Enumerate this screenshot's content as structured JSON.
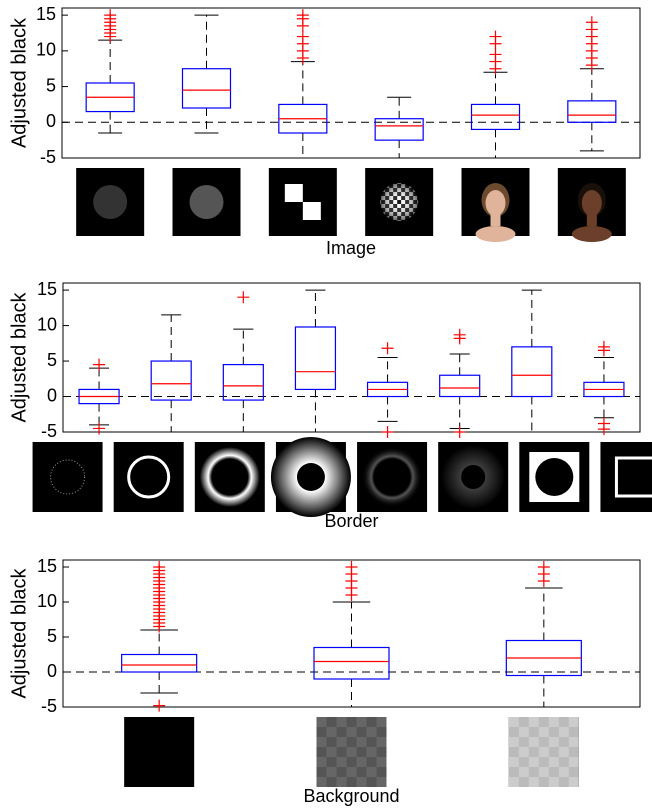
{
  "chart_data": [
    {
      "type": "box",
      "ylabel": "Adjusted black",
      "xlabel": "Image",
      "ylim": [
        -5,
        16
      ],
      "yticks": [
        -5,
        0,
        5,
        10,
        15
      ],
      "reference_line": 0,
      "box_color": "#0000ff",
      "median_color": "#ff0000",
      "flier_color": "#ff0000",
      "boxes": [
        {
          "whislo": -1.5,
          "q1": 1.5,
          "med": 3.5,
          "q3": 5.5,
          "whishi": 11.5,
          "fliers": [
            12,
            12.5,
            13,
            13.5,
            14,
            14.5,
            15
          ]
        },
        {
          "whislo": -1.5,
          "q1": 2,
          "med": 4.5,
          "q3": 7.5,
          "whishi": 15,
          "fliers": []
        },
        {
          "whislo": -5,
          "q1": -1.5,
          "med": 0.5,
          "q3": 2.5,
          "whishi": 8.5,
          "fliers": [
            9,
            10,
            11,
            12,
            13.5,
            14.5,
            15
          ]
        },
        {
          "whislo": -5,
          "q1": -2.5,
          "med": -0.5,
          "q3": 0.5,
          "whishi": 3.5,
          "fliers": []
        },
        {
          "whislo": -5,
          "q1": -1,
          "med": 1,
          "q3": 2.5,
          "whishi": 7,
          "fliers": [
            7.5,
            8.5,
            9.5,
            11,
            12
          ]
        },
        {
          "whislo": -4,
          "q1": 0,
          "med": 1,
          "q3": 3,
          "whishi": 7.5,
          "fliers": [
            8,
            9,
            10,
            11,
            12,
            13,
            14
          ]
        }
      ]
    },
    {
      "type": "box",
      "ylabel": "Adjusted black",
      "xlabel": "Border",
      "ylim": [
        -5,
        16
      ],
      "yticks": [
        -5,
        0,
        5,
        10,
        15
      ],
      "reference_line": 0,
      "box_color": "#0000ff",
      "median_color": "#ff0000",
      "flier_color": "#ff0000",
      "boxes": [
        {
          "whislo": -4,
          "q1": -1,
          "med": 0,
          "q3": 1,
          "whishi": 4,
          "fliers": [
            4.5,
            -4.5
          ]
        },
        {
          "whislo": -5,
          "q1": -0.5,
          "med": 1.8,
          "q3": 5,
          "whishi": 11.5,
          "fliers": []
        },
        {
          "whislo": -5,
          "q1": -0.5,
          "med": 1.5,
          "q3": 4.5,
          "whishi": 9.5,
          "fliers": [
            14
          ]
        },
        {
          "whislo": -5,
          "q1": 1,
          "med": 3.5,
          "q3": 9.8,
          "whishi": 15,
          "fliers": []
        },
        {
          "whislo": -3.5,
          "q1": 0,
          "med": 1,
          "q3": 2,
          "whishi": 5.5,
          "fliers": [
            6.8,
            -5
          ]
        },
        {
          "whislo": -4.5,
          "q1": 0,
          "med": 1.2,
          "q3": 3,
          "whishi": 6,
          "fliers": [
            8.2,
            8.7,
            -5
          ]
        },
        {
          "whislo": -5,
          "q1": 0,
          "med": 3,
          "q3": 7,
          "whishi": 15,
          "fliers": []
        },
        {
          "whislo": -3,
          "q1": 0,
          "med": 1,
          "q3": 2,
          "whishi": 5.5,
          "fliers": [
            6.5,
            7,
            -3.8,
            -4.6
          ]
        }
      ]
    },
    {
      "type": "box",
      "ylabel": "Adjusted black",
      "xlabel": "Background",
      "ylim": [
        -5,
        16
      ],
      "yticks": [
        -5,
        0,
        5,
        10,
        15
      ],
      "reference_line": 0,
      "box_color": "#0000ff",
      "median_color": "#ff0000",
      "flier_color": "#ff0000",
      "boxes": [
        {
          "whislo": -3,
          "q1": 0,
          "med": 1,
          "q3": 2.5,
          "whishi": 6,
          "fliers": [
            6.5,
            7,
            7.5,
            8,
            8.5,
            9,
            9.5,
            10,
            10.5,
            11,
            11.5,
            12,
            12.5,
            13,
            13.5,
            14,
            14.5,
            15,
            -4.8
          ]
        },
        {
          "whislo": -5,
          "q1": -1,
          "med": 1.5,
          "q3": 3.5,
          "whishi": 10,
          "fliers": [
            11,
            12,
            13,
            14,
            15
          ]
        },
        {
          "whislo": -5,
          "q1": -0.5,
          "med": 2,
          "q3": 4.5,
          "whishi": 12,
          "fliers": [
            13,
            14,
            15
          ]
        }
      ]
    }
  ]
}
